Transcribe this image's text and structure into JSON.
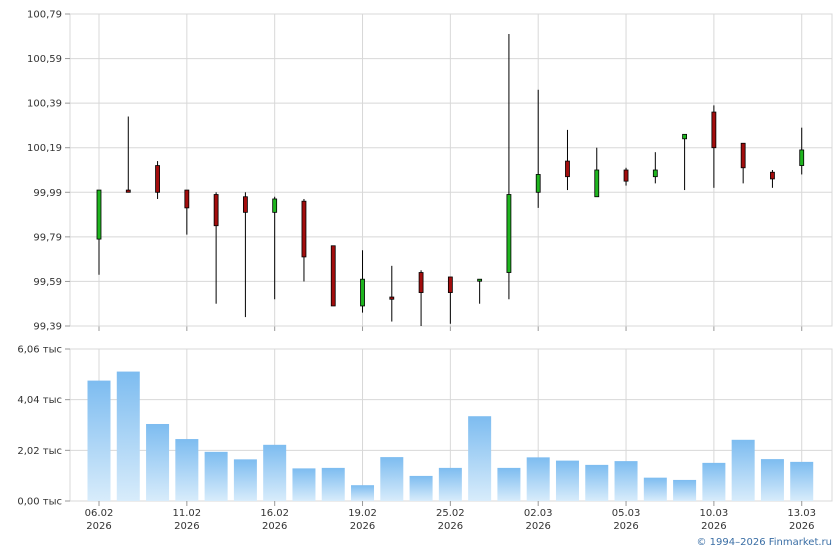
{
  "copyright": "© 1994–2026 Finmarket.ru",
  "colors": {
    "up": "#1fb51f",
    "down": "#a30d0d",
    "volume_top": "#7dbcf0",
    "volume_bottom": "#d8ecfb",
    "grid": "#d8d8d8",
    "axis": "#999999"
  },
  "chart_data": [
    {
      "type": "candlestick",
      "ylim": [
        99.39,
        100.79
      ],
      "yticks": [
        99.39,
        99.59,
        99.79,
        99.99,
        100.19,
        100.39,
        100.59,
        100.79
      ],
      "ytick_labels": [
        "99,39",
        "99,59",
        "99,79",
        "99,99",
        "100,19",
        "100,39",
        "100,59",
        "100,79"
      ],
      "x_labels": [
        {
          "index": 0,
          "date": "06.02",
          "year": "2026"
        },
        {
          "index": 3,
          "date": "11.02",
          "year": "2026"
        },
        {
          "index": 6,
          "date": "16.02",
          "year": "2026"
        },
        {
          "index": 9,
          "date": "19.02",
          "year": "2026"
        },
        {
          "index": 12,
          "date": "25.02",
          "year": "2026"
        },
        {
          "index": 15,
          "date": "02.03",
          "year": "2026"
        },
        {
          "index": 18,
          "date": "05.03",
          "year": "2026"
        },
        {
          "index": 21,
          "date": "10.03",
          "year": "2026"
        },
        {
          "index": 24,
          "date": "13.03",
          "year": "2026"
        }
      ],
      "candles": [
        {
          "o": 99.78,
          "h": 100.0,
          "l": 99.62,
          "c": 100.0
        },
        {
          "o": 100.0,
          "h": 100.33,
          "l": 99.99,
          "c": 99.99
        },
        {
          "o": 100.11,
          "h": 100.13,
          "l": 99.96,
          "c": 99.99
        },
        {
          "o": 100.0,
          "h": 100.0,
          "l": 99.8,
          "c": 99.92
        },
        {
          "o": 99.98,
          "h": 99.99,
          "l": 99.49,
          "c": 99.84
        },
        {
          "o": 99.97,
          "h": 99.99,
          "l": 99.43,
          "c": 99.9
        },
        {
          "o": 99.9,
          "h": 99.97,
          "l": 99.51,
          "c": 99.96
        },
        {
          "o": 99.95,
          "h": 99.96,
          "l": 99.59,
          "c": 99.7
        },
        {
          "o": 99.75,
          "h": 99.75,
          "l": 99.48,
          "c": 99.48
        },
        {
          "o": 99.48,
          "h": 99.73,
          "l": 99.45,
          "c": 99.6
        },
        {
          "o": 99.52,
          "h": 99.66,
          "l": 99.41,
          "c": 99.51
        },
        {
          "o": 99.63,
          "h": 99.64,
          "l": 99.39,
          "c": 99.54
        },
        {
          "o": 99.61,
          "h": 99.61,
          "l": 99.4,
          "c": 99.54
        },
        {
          "o": 99.6,
          "h": 99.6,
          "l": 99.49,
          "c": 99.6
        },
        {
          "o": 99.63,
          "h": 100.7,
          "l": 99.51,
          "c": 99.98
        },
        {
          "o": 99.99,
          "h": 100.45,
          "l": 99.92,
          "c": 100.07
        },
        {
          "o": 100.13,
          "h": 100.27,
          "l": 100.0,
          "c": 100.06
        },
        {
          "o": 99.97,
          "h": 100.19,
          "l": 99.97,
          "c": 100.09
        },
        {
          "o": 100.09,
          "h": 100.1,
          "l": 100.02,
          "c": 100.04
        },
        {
          "o": 100.06,
          "h": 100.17,
          "l": 100.03,
          "c": 100.09
        },
        {
          "o": 100.23,
          "h": 100.24,
          "l": 100.0,
          "c": 100.25
        },
        {
          "o": 100.35,
          "h": 100.38,
          "l": 100.01,
          "c": 100.19
        },
        {
          "o": 100.21,
          "h": 100.21,
          "l": 100.03,
          "c": 100.1
        },
        {
          "o": 100.08,
          "h": 100.09,
          "l": 100.01,
          "c": 100.05
        },
        {
          "o": 100.11,
          "h": 100.28,
          "l": 100.07,
          "c": 100.18
        }
      ]
    },
    {
      "type": "bar",
      "ylim": [
        0,
        6.06
      ],
      "yticks": [
        0.0,
        2.02,
        4.04,
        6.06
      ],
      "ytick_labels": [
        "0,00 тыс",
        "2,02 тыс",
        "4,04 тыс",
        "6,06 тыс"
      ],
      "values": [
        4.8,
        5.16,
        3.07,
        2.47,
        1.96,
        1.66,
        2.24,
        1.3,
        1.32,
        0.63,
        1.75,
        1.0,
        1.32,
        3.38,
        1.32,
        1.74,
        1.61,
        1.44,
        1.59,
        0.93,
        0.84,
        1.52,
        2.44,
        1.67,
        1.56
      ]
    }
  ]
}
